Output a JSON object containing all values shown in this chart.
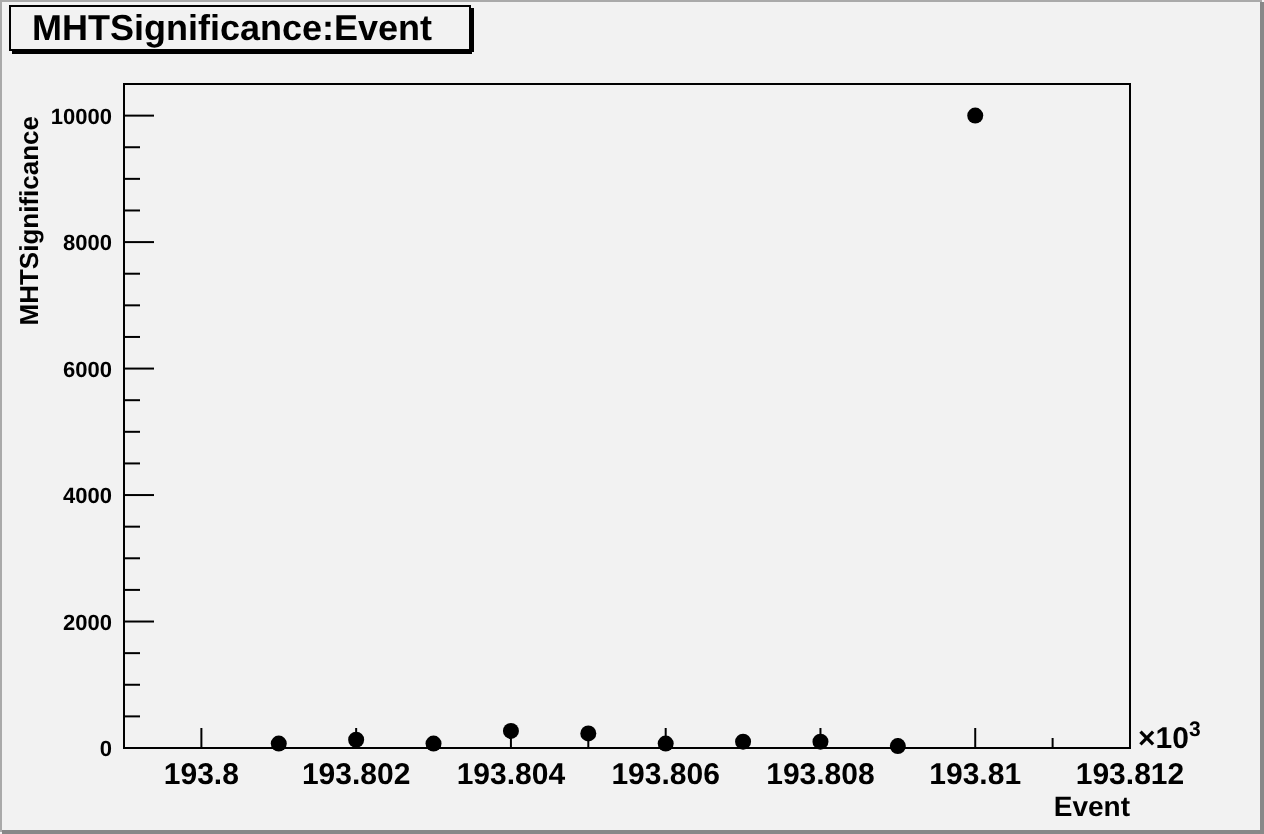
{
  "chart_data": {
    "type": "scatter",
    "title": "MHTSignificance:Event",
    "xlabel": "Event",
    "ylabel": "MHTSignificance",
    "x": [
      193.801,
      193.802,
      193.803,
      193.804,
      193.805,
      193.806,
      193.807,
      193.808,
      193.809,
      193.81
    ],
    "values": [
      70,
      130,
      70,
      270,
      230,
      70,
      100,
      100,
      30,
      10000
    ],
    "color": "#000000",
    "marker": "circle",
    "xlim": [
      193.799,
      193.812
    ],
    "xticks": [
      193.8,
      193.802,
      193.804,
      193.806,
      193.808,
      193.81,
      193.812
    ],
    "ylim": [
      0,
      10500
    ],
    "yticks": [
      0,
      2000,
      4000,
      6000,
      8000,
      10000
    ],
    "annotations": [
      "×10$^{3}$"
    ]
  }
}
